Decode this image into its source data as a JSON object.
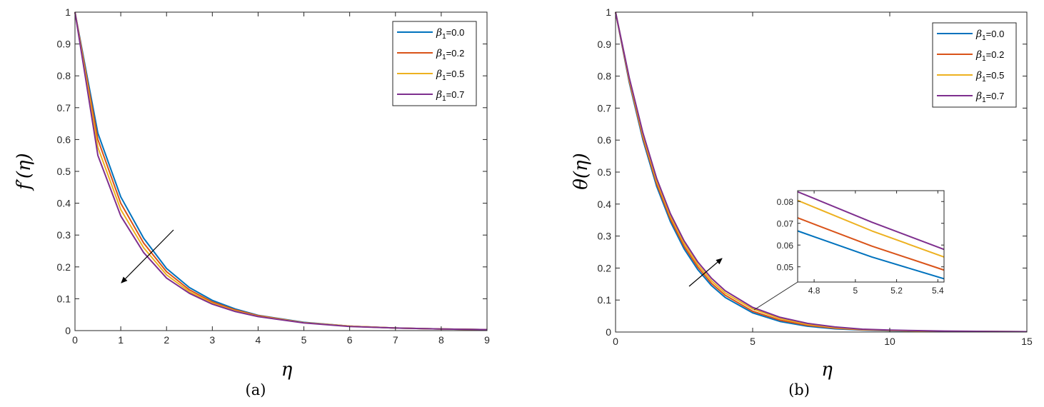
{
  "colors": {
    "series": [
      "#0072BD",
      "#D95319",
      "#EDB120",
      "#7E2F8E"
    ],
    "axis": "#262626",
    "arrow": "#000000"
  },
  "legend_labels": {
    "symbol": "β",
    "subscript": "1",
    "values": [
      "=0.0",
      "=0.2",
      "=0.5",
      "=0.7"
    ]
  },
  "chart_data": [
    {
      "type": "line",
      "caption": "(a)",
      "xlabel": "η",
      "ylabel": "f′(η)",
      "xlim": [
        0,
        9
      ],
      "ylim": [
        0,
        1
      ],
      "xticks": [
        0,
        1,
        2,
        3,
        4,
        5,
        6,
        7,
        8,
        9
      ],
      "yticks": [
        0,
        0.1,
        0.2,
        0.3,
        0.4,
        0.5,
        0.6,
        0.7,
        0.8,
        0.9,
        1
      ],
      "legend": "top-right",
      "annotation": "arrow pointing down-left indicating decrease with increasing β1",
      "x": [
        0,
        0.5,
        1,
        1.5,
        2,
        2.5,
        3,
        3.5,
        4,
        5,
        6,
        7,
        8,
        9
      ],
      "series": [
        {
          "name": "β1=0.0",
          "values": [
            1.0,
            0.62,
            0.42,
            0.29,
            0.195,
            0.135,
            0.095,
            0.068,
            0.048,
            0.026,
            0.014,
            0.008,
            0.005,
            0.003
          ]
        },
        {
          "name": "β1=0.2",
          "values": [
            1.0,
            0.6,
            0.4,
            0.275,
            0.185,
            0.128,
            0.09,
            0.065,
            0.047,
            0.025,
            0.014,
            0.008,
            0.005,
            0.003
          ]
        },
        {
          "name": "β1=0.5",
          "values": [
            1.0,
            0.575,
            0.38,
            0.26,
            0.175,
            0.122,
            0.086,
            0.062,
            0.045,
            0.025,
            0.014,
            0.008,
            0.005,
            0.003
          ]
        },
        {
          "name": "β1=0.7",
          "values": [
            1.0,
            0.55,
            0.36,
            0.245,
            0.165,
            0.117,
            0.083,
            0.06,
            0.044,
            0.024,
            0.013,
            0.008,
            0.005,
            0.003
          ]
        }
      ]
    },
    {
      "type": "line",
      "caption": "(b)",
      "xlabel": "η",
      "ylabel": "θ(η)",
      "xlim": [
        0,
        15
      ],
      "ylim": [
        0,
        1
      ],
      "xticks": [
        0,
        5,
        10,
        15
      ],
      "yticks": [
        0,
        0.1,
        0.2,
        0.3,
        0.4,
        0.5,
        0.6,
        0.7,
        0.8,
        0.9,
        1
      ],
      "legend": "top-right",
      "annotation": "arrow pointing up-right indicating increase with increasing β1",
      "x": [
        0,
        0.5,
        1,
        1.5,
        2,
        2.5,
        3,
        3.5,
        4,
        5,
        6,
        7,
        8,
        9,
        10,
        12,
        15
      ],
      "series": [
        {
          "name": "β1=0.0",
          "values": [
            1.0,
            0.78,
            0.6,
            0.455,
            0.345,
            0.26,
            0.195,
            0.145,
            0.108,
            0.06,
            0.033,
            0.018,
            0.01,
            0.006,
            0.004,
            0.002,
            0.001
          ]
        },
        {
          "name": "β1=0.2",
          "values": [
            1.0,
            0.785,
            0.607,
            0.463,
            0.353,
            0.268,
            0.203,
            0.152,
            0.115,
            0.065,
            0.037,
            0.021,
            0.012,
            0.007,
            0.005,
            0.002,
            0.001
          ]
        },
        {
          "name": "β1=0.5",
          "values": [
            1.0,
            0.79,
            0.615,
            0.472,
            0.362,
            0.277,
            0.211,
            0.16,
            0.122,
            0.072,
            0.042,
            0.024,
            0.014,
            0.008,
            0.005,
            0.002,
            0.001
          ]
        },
        {
          "name": "β1=0.7",
          "values": [
            1.0,
            0.795,
            0.622,
            0.48,
            0.37,
            0.285,
            0.219,
            0.168,
            0.129,
            0.077,
            0.046,
            0.027,
            0.016,
            0.009,
            0.006,
            0.003,
            0.001
          ]
        }
      ],
      "inset": {
        "type": "line",
        "xlim": [
          4.72,
          5.43
        ],
        "ylim": [
          0.043,
          0.085
        ],
        "xticks": [
          4.8,
          5,
          5.2,
          5.4
        ],
        "yticks": [
          0.05,
          0.06,
          0.07,
          0.08
        ],
        "x": [
          4.72,
          5.08,
          5.43
        ],
        "series": [
          {
            "name": "β1=0.0",
            "values": [
              0.0665,
              0.0545,
              0.0445
            ]
          },
          {
            "name": "β1=0.2",
            "values": [
              0.0725,
              0.0595,
              0.0485
            ]
          },
          {
            "name": "β1=0.5",
            "values": [
              0.0805,
              0.0665,
              0.0545
            ]
          },
          {
            "name": "β1=0.7",
            "values": [
              0.0845,
              0.0705,
              0.058
            ]
          }
        ]
      }
    }
  ]
}
